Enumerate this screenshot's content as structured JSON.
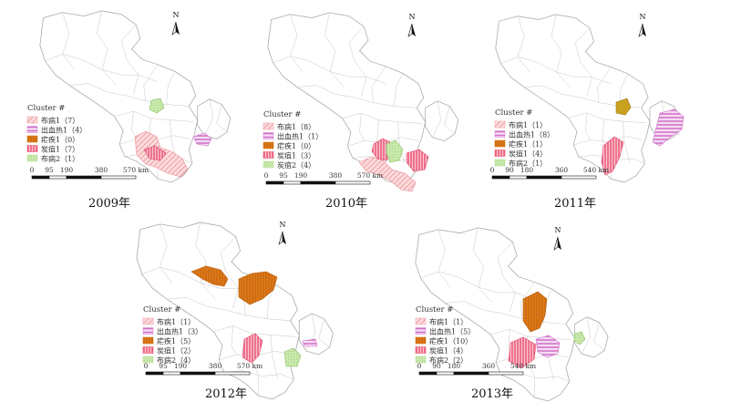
{
  "colors": {
    "brucellosis1": "#f4a3a8",
    "hemorrhagic_fever1": "#de86d8",
    "malaria1": "#e07b1a",
    "anthrax1": "#ef5c7a",
    "brucellosis2": "#b8e09a",
    "outline": "#b5b5b5",
    "golden": "#caa11e"
  },
  "north_label": "N",
  "legend_title": "Cluster #",
  "panels": [
    {
      "year": "2009年",
      "legend": [
        {
          "label": "布病1（7）",
          "key": "brucellosis1"
        },
        {
          "label": "出血热1（4）",
          "key": "hemorrhagic_fever1"
        },
        {
          "label": "疟疾1（0）",
          "key": "malaria1"
        },
        {
          "label": "炭疽1（7）",
          "key": "anthrax1"
        },
        {
          "label": "布病2（1）",
          "key": "brucellosis2"
        }
      ],
      "scale": [
        "0",
        "95",
        "190",
        "380",
        "570 km"
      ]
    },
    {
      "year": "2010年",
      "legend": [
        {
          "label": "布病1（8）",
          "key": "brucellosis1"
        },
        {
          "label": "出血热1（1）",
          "key": "hemorrhagic_fever1"
        },
        {
          "label": "疟疾1（0）",
          "key": "malaria1"
        },
        {
          "label": "炭疽1（3）",
          "key": "anthrax1"
        },
        {
          "label": "炭疽2（4）",
          "key": "brucellosis2"
        }
      ],
      "scale": [
        "0",
        "95",
        "190",
        "380",
        "570 km"
      ]
    },
    {
      "year": "2011年",
      "legend": [
        {
          "label": "布病1（1）",
          "key": "brucellosis1"
        },
        {
          "label": "出血热1（8）",
          "key": "hemorrhagic_fever1"
        },
        {
          "label": "疟疾1（1）",
          "key": "malaria1"
        },
        {
          "label": "炭疽1（4）",
          "key": "anthrax1"
        },
        {
          "label": "布病2（1）",
          "key": "brucellosis2"
        }
      ],
      "scale": [
        "0",
        "90",
        "180",
        "360",
        "540 km"
      ]
    },
    {
      "year": "2012年",
      "legend": [
        {
          "label": "布病1（1）",
          "key": "brucellosis1"
        },
        {
          "label": "出血热1（3）",
          "key": "hemorrhagic_fever1"
        },
        {
          "label": "疟疾1（5）",
          "key": "malaria1"
        },
        {
          "label": "炭疽1（2）",
          "key": "anthrax1"
        },
        {
          "label": "布病2（4）",
          "key": "brucellosis2"
        }
      ],
      "scale": [
        "0",
        "95",
        "190",
        "380",
        "570 km"
      ]
    },
    {
      "year": "2013年",
      "legend": [
        {
          "label": "布病1（1）",
          "key": "brucellosis1"
        },
        {
          "label": "出血热1（5）",
          "key": "hemorrhagic_fever1"
        },
        {
          "label": "疟疾1（10）",
          "key": "malaria1"
        },
        {
          "label": "炭疽1（4）",
          "key": "anthrax1"
        },
        {
          "label": "布病2（2）",
          "key": "brucellosis2"
        }
      ],
      "scale": [
        "0",
        "90",
        "180",
        "360",
        "540 km"
      ]
    }
  ]
}
